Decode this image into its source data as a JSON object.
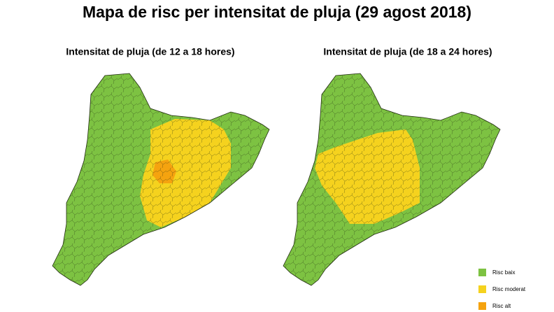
{
  "title": "Mapa de risc per intensitat de pluja (29 agost 2018)",
  "maps": [
    {
      "subtitle": "Intensitat de pluja (de 12 a 18 hores)"
    },
    {
      "subtitle": "Intensitat de pluja (de 18 a 24 hores)"
    }
  ],
  "legend": [
    {
      "label": "Risc baix",
      "color": "#7dc242"
    },
    {
      "label": "Risc moderat",
      "color": "#f5d21e"
    },
    {
      "label": "Risc alt",
      "color": "#f5a30f"
    }
  ]
}
